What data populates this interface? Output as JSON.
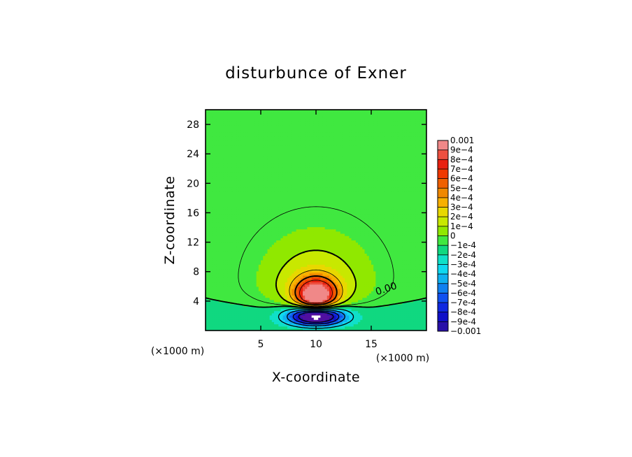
{
  "chart_data": {
    "type": "heatmap",
    "title": "disturbunce of Exner",
    "xlabel": "X-coordinate",
    "ylabel": "Z-coordinate",
    "x_unit_left": "(×1000 m)",
    "x_unit_right": "(×1000 m)",
    "xlim": [
      0,
      20
    ],
    "ylim": [
      0,
      30
    ],
    "x_ticks": [
      5,
      10,
      15
    ],
    "y_ticks": [
      4,
      8,
      12,
      16,
      20,
      24,
      28
    ],
    "contour_label": "0.00",
    "contour_label_position": [
      15.5,
      4.8
    ],
    "colorbar": {
      "labels": [
        "0.001",
        "9e-4",
        "8e-4",
        "7e-4",
        "6e-4",
        "5e-4",
        "4e-4",
        "3e-4",
        "2e-4",
        "1e-4",
        "0",
        "-1e-4",
        "-2e-4",
        "-3e-4",
        "-4e-4",
        "-5e-4",
        "-6e-4",
        "-7e-4",
        "-8e-4",
        "-9e-4",
        "-0.001"
      ],
      "colors": [
        "#f08888",
        "#ee5040",
        "#e82010",
        "#f03800",
        "#f06000",
        "#f08800",
        "#f8b000",
        "#e8d800",
        "#c8e800",
        "#90e800",
        "#40e840",
        "#10d880",
        "#10e0c8",
        "#10d8f0",
        "#10b0f0",
        "#1080f0",
        "#1050f0",
        "#1028e0",
        "#1010c8",
        "#2810a8",
        "#5010a0"
      ]
    },
    "field": {
      "description_values": "positive maximum ~0.001 near (10, 4.8); negative minimum ~-0.001 near (10, 2); zero contour near z=4",
      "positive_center": [
        10,
        4.8
      ],
      "negative_center": [
        10,
        2
      ]
    },
    "grid": false
  }
}
